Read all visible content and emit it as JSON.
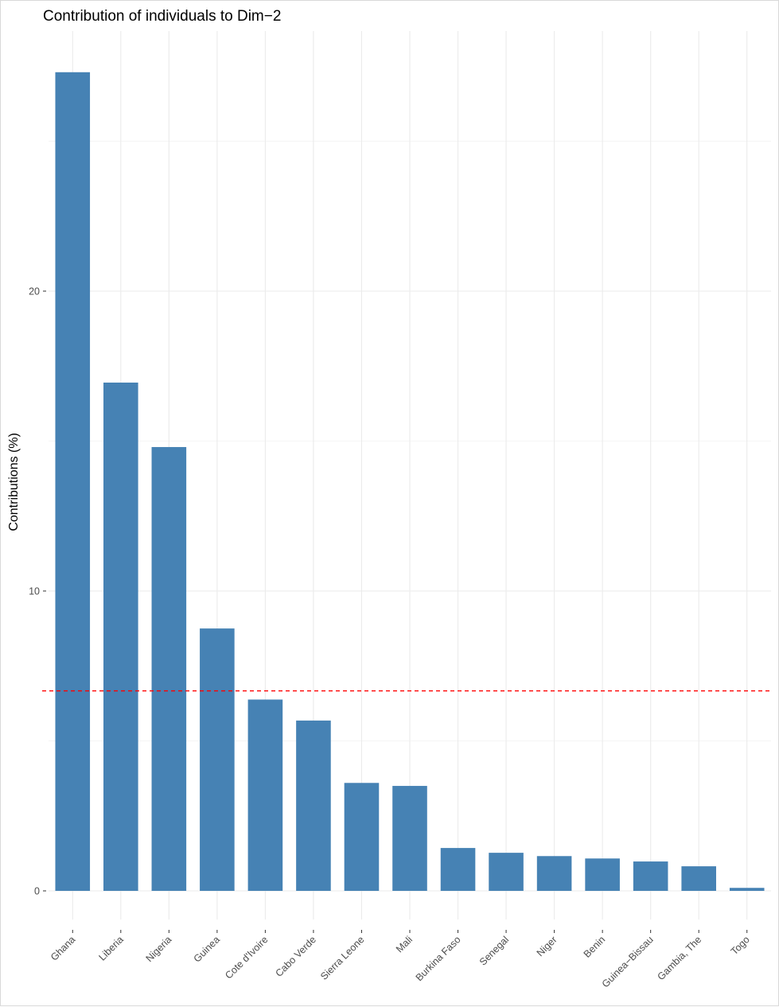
{
  "chart_data": {
    "type": "bar",
    "title": "Contribution of individuals to Dim−2",
    "xlabel": "",
    "ylabel": "Contributions (%)",
    "categories": [
      "Ghana",
      "Liberia",
      "Nigeria",
      "Guinea",
      "Cote d'Ivoire",
      "Cabo Verde",
      "Sierra Leone",
      "Mali",
      "Burkina Faso",
      "Senegal",
      "Niger",
      "Benin",
      "Guinea−Bissau",
      "Gambia, The",
      "Togo"
    ],
    "values": [
      27.3,
      16.95,
      14.8,
      8.75,
      6.38,
      5.68,
      3.6,
      3.5,
      1.43,
      1.27,
      1.16,
      1.08,
      0.98,
      0.82,
      0.1
    ],
    "reference_line": 6.67,
    "yticks": [
      0,
      10,
      20
    ],
    "ylim": [
      -1.0,
      28.6
    ],
    "grid": true,
    "colors": {
      "bar": "#4682B4",
      "reference_line": "#FF0000",
      "grid": "#ebebeb"
    }
  }
}
